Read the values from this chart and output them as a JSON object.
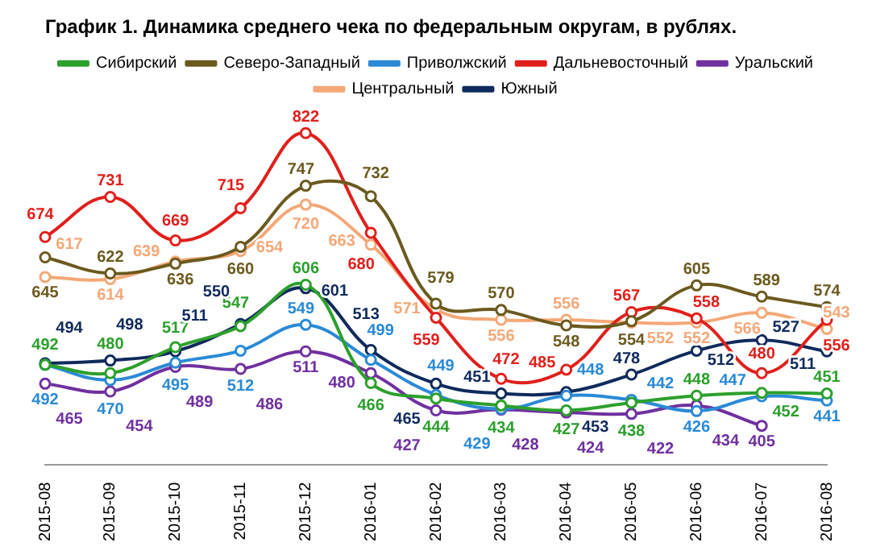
{
  "chart_data": {
    "type": "line",
    "title": "График 1. Динамика среднего чека по федеральным округам, в рублях.",
    "categories": [
      "2015-08",
      "2015-09",
      "2015-10",
      "2015-11",
      "2015-12",
      "2016-01",
      "2016-02",
      "2016-03",
      "2016-04",
      "2016-05",
      "2016-06",
      "2016-07",
      "2016-08"
    ],
    "series": [
      {
        "name": "Сибирский",
        "color": "#2ca02c",
        "values": [
          492,
          480,
          517,
          547,
          606,
          466,
          444,
          434,
          427,
          438,
          448,
          452,
          451
        ]
      },
      {
        "name": "Северо-Западный",
        "color": "#6b5a1e",
        "values": [
          645,
          622,
          636,
          660,
          747,
          732,
          579,
          570,
          548,
          554,
          605,
          589,
          574
        ]
      },
      {
        "name": "Приволжский",
        "color": "#2a8ad6",
        "values": [
          492,
          470,
          495,
          512,
          549,
          499,
          449,
          429,
          448,
          442,
          426,
          447,
          441
        ]
      },
      {
        "name": "Дальневосточный",
        "color": "#e0201c",
        "values": [
          674,
          731,
          669,
          715,
          822,
          680,
          559,
          472,
          485,
          567,
          558,
          480,
          556
        ]
      },
      {
        "name": "Уральский",
        "color": "#7030a0",
        "values": [
          465,
          454,
          489,
          486,
          511,
          480,
          427,
          428,
          424,
          422,
          434,
          405,
          null
        ]
      },
      {
        "name": "Центральный",
        "color": "#f4a877",
        "values": [
          617,
          614,
          639,
          654,
          720,
          663,
          571,
          556,
          556,
          552,
          552,
          566,
          543
        ]
      },
      {
        "name": "Южный",
        "color": "#0f2a5c",
        "values": [
          494,
          498,
          511,
          550,
          601,
          513,
          465,
          451,
          453,
          478,
          512,
          527,
          511
        ]
      }
    ],
    "data_labels": true,
    "legend": "top",
    "marker": "circle",
    "line_style": "solid",
    "grid": false
  }
}
